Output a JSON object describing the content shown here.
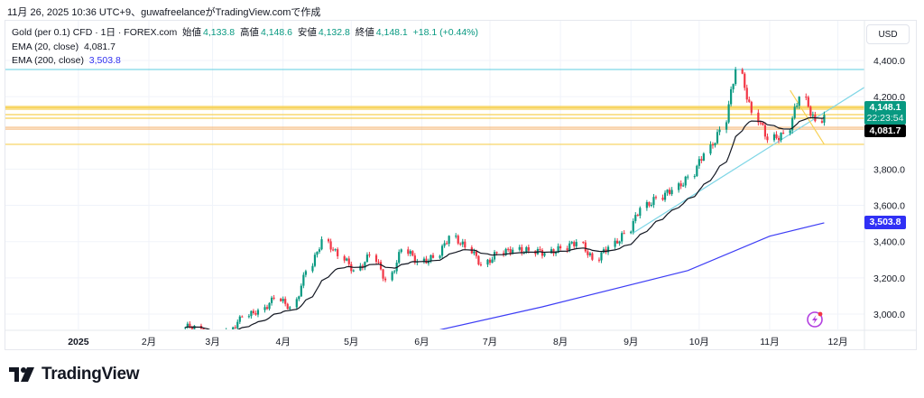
{
  "caption": "11月 26, 2025 10:36 UTC+9、guwafreelanceがTradingView.comで作成",
  "legend": {
    "symbol": "Gold (per 0.1) CFD · 1日 · FOREX.com",
    "open_label": "始値",
    "open": "4,133.8",
    "high_label": "高値",
    "high": "4,148.6",
    "low_label": "安値",
    "low": "4,132.8",
    "close_label": "終値",
    "close": "4,148.1",
    "change": "+18.1 (+0.44%)",
    "ema20_label": "EMA (20, close)",
    "ema20_value": "4,081.7",
    "ema200_label": "EMA (200, close)",
    "ema200_value": "3,503.8"
  },
  "currency_button": "USD",
  "badges": {
    "last_price": "4,148.1",
    "countdown": "22:23:54",
    "ema20": "4,081.7",
    "ema200": "3,503.8"
  },
  "logo_text": "TradingView",
  "colors": {
    "up": "#089981",
    "down": "#f23645",
    "ema20": "#131722",
    "ema200": "#3d3df5",
    "hline_cyan": "#7fd6e6",
    "hline_yellow": "#f7d155",
    "hline_orange": "#f5b97a",
    "trend": "#7fd6e6"
  },
  "chart_data": {
    "type": "candlestick",
    "title": "Gold (per 0.1) CFD · 1日 · FOREX.com",
    "y_ticks": [
      "4,400.0",
      "4,200.0",
      "3,800.0",
      "3,600.0",
      "3,400.0",
      "3,200.0",
      "3,000.0"
    ],
    "y_tick_values": [
      4400,
      4200,
      3800,
      3600,
      3400,
      3200,
      3000
    ],
    "ylim": [
      2900,
      4450
    ],
    "x_ticks": [
      {
        "label": "2月",
        "date": "2024-02-01"
      },
      {
        "label": "2025",
        "date": "2025-01-01"
      },
      {
        "label": "2月",
        "date": "2025-02-01"
      },
      {
        "label": "3月",
        "date": "2025-03-01"
      },
      {
        "label": "4月",
        "date": "2025-04-01"
      },
      {
        "label": "5月",
        "date": "2025-05-01"
      },
      {
        "label": "6月",
        "date": "2025-06-01"
      },
      {
        "label": "7月",
        "date": "2025-07-01"
      },
      {
        "label": "8月",
        "date": "2025-08-01"
      },
      {
        "label": "9月",
        "date": "2025-09-01"
      },
      {
        "label": "10月",
        "date": "2025-10-01"
      },
      {
        "label": "11月",
        "date": "2025-11-01"
      },
      {
        "label": "12月",
        "date": "2025-12-01"
      }
    ],
    "weekly_close_anchors": {
      "start_week": "2025-02-17",
      "closes": [
        2935,
        2858,
        2910,
        2984,
        3022,
        3085,
        3037,
        3237,
        3413,
        3319,
        3241,
        3325,
        3187,
        3357,
        3290,
        3310,
        3432,
        3368,
        3273,
        3337,
        3355,
        3350,
        3336,
        3363,
        3398,
        3300,
        3371,
        3447,
        3586,
        3643,
        3685,
        3759,
        3886,
        4018,
        4350,
        4112,
        3960,
        3999,
        4200,
        4065,
        4148.1
      ]
    },
    "ema200_points": [
      {
        "date": "2025-06-08",
        "value": 2910
      },
      {
        "date": "2025-07-24",
        "value": 3040
      },
      {
        "date": "2025-09-26",
        "value": 3240
      },
      {
        "date": "2025-11-01",
        "value": 3430
      },
      {
        "date": "2025-11-25",
        "value": 3503.8
      }
    ],
    "horizontal_levels": [
      {
        "price": 4350,
        "color": "cyan"
      },
      {
        "price": 4146,
        "color": "yellow"
      },
      {
        "price": 4139,
        "color": "yellow"
      },
      {
        "price": 4131,
        "color": "yellow"
      },
      {
        "price": 4101,
        "color": "yellow"
      },
      {
        "price": 4081,
        "color": "yellow"
      },
      {
        "price": 4031,
        "color": "orange"
      },
      {
        "price": 4021,
        "color": "orange"
      },
      {
        "price": 3937,
        "color": "yellow"
      }
    ],
    "trendlines": [
      {
        "from": {
          "date": "2025-09-02",
          "price": 3448
        },
        "to": {
          "date": "2025-12-15",
          "price": 4270
        },
        "color": "cyan"
      },
      {
        "from": {
          "date": "2025-11-10",
          "price": 4235
        },
        "to": {
          "date": "2025-11-25",
          "price": 3937
        },
        "color": "yellow"
      }
    ]
  }
}
